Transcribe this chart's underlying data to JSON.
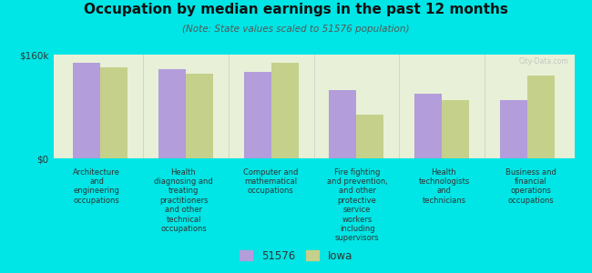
{
  "title": "Occupation by median earnings in the past 12 months",
  "subtitle": "(Note: State values scaled to 51576 population)",
  "background_color": "#00e5e5",
  "plot_bg_color": "#e8f0d8",
  "categories": [
    "Architecture\nand\nengineering\noccupations",
    "Health\ndiagnosing and\ntreating\npractitioners\nand other\ntechnical\noccupations",
    "Computer and\nmathematical\noccupations",
    "Fire fighting\nand prevention,\nand other\nprotective\nservice\nworkers\nincluding\nsupervisors",
    "Health\ntechnologists\nand\ntechnicians",
    "Business and\nfinancial\noperations\noccupations"
  ],
  "values_51576": [
    148000,
    138000,
    133000,
    105000,
    100000,
    90000
  ],
  "values_iowa": [
    140000,
    130000,
    148000,
    68000,
    90000,
    128000
  ],
  "color_51576": "#b39ddb",
  "color_iowa": "#c5d08a",
  "ylim": [
    0,
    160000
  ],
  "ytick_labels": [
    "$0",
    "$160k"
  ],
  "legend_51576": "51576",
  "legend_iowa": "Iowa"
}
